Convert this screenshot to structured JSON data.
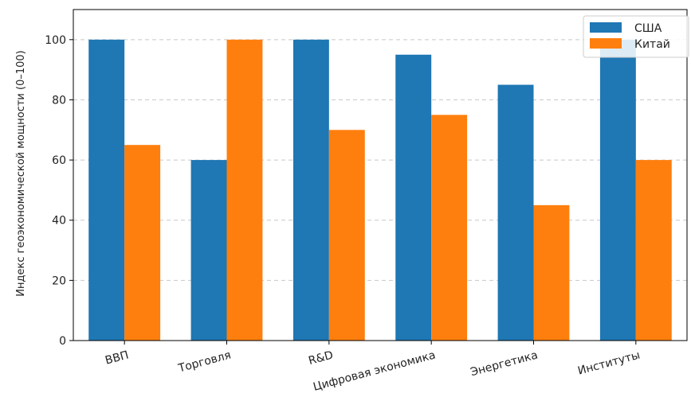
{
  "chart_data": {
    "type": "bar",
    "title": "",
    "xlabel": "",
    "ylabel": "Индекс геоэкономической мощности (0–100)",
    "categories": [
      "ВВП",
      "Торговля",
      "R&D",
      "Цифровая экономика",
      "Энергетика",
      "Институты"
    ],
    "series": [
      {
        "name": "США",
        "values": [
          100,
          60,
          100,
          95,
          85,
          100
        ],
        "color": "#1f77b4"
      },
      {
        "name": "Китай",
        "values": [
          65,
          100,
          70,
          75,
          45,
          60
        ],
        "color": "#ff7f0e"
      }
    ],
    "ylim": [
      0,
      110
    ],
    "yticks": [
      0,
      20,
      40,
      60,
      80,
      100
    ],
    "grid": "horizontal-dashed",
    "legend": "top-right",
    "x_tick_rotation": -15
  }
}
